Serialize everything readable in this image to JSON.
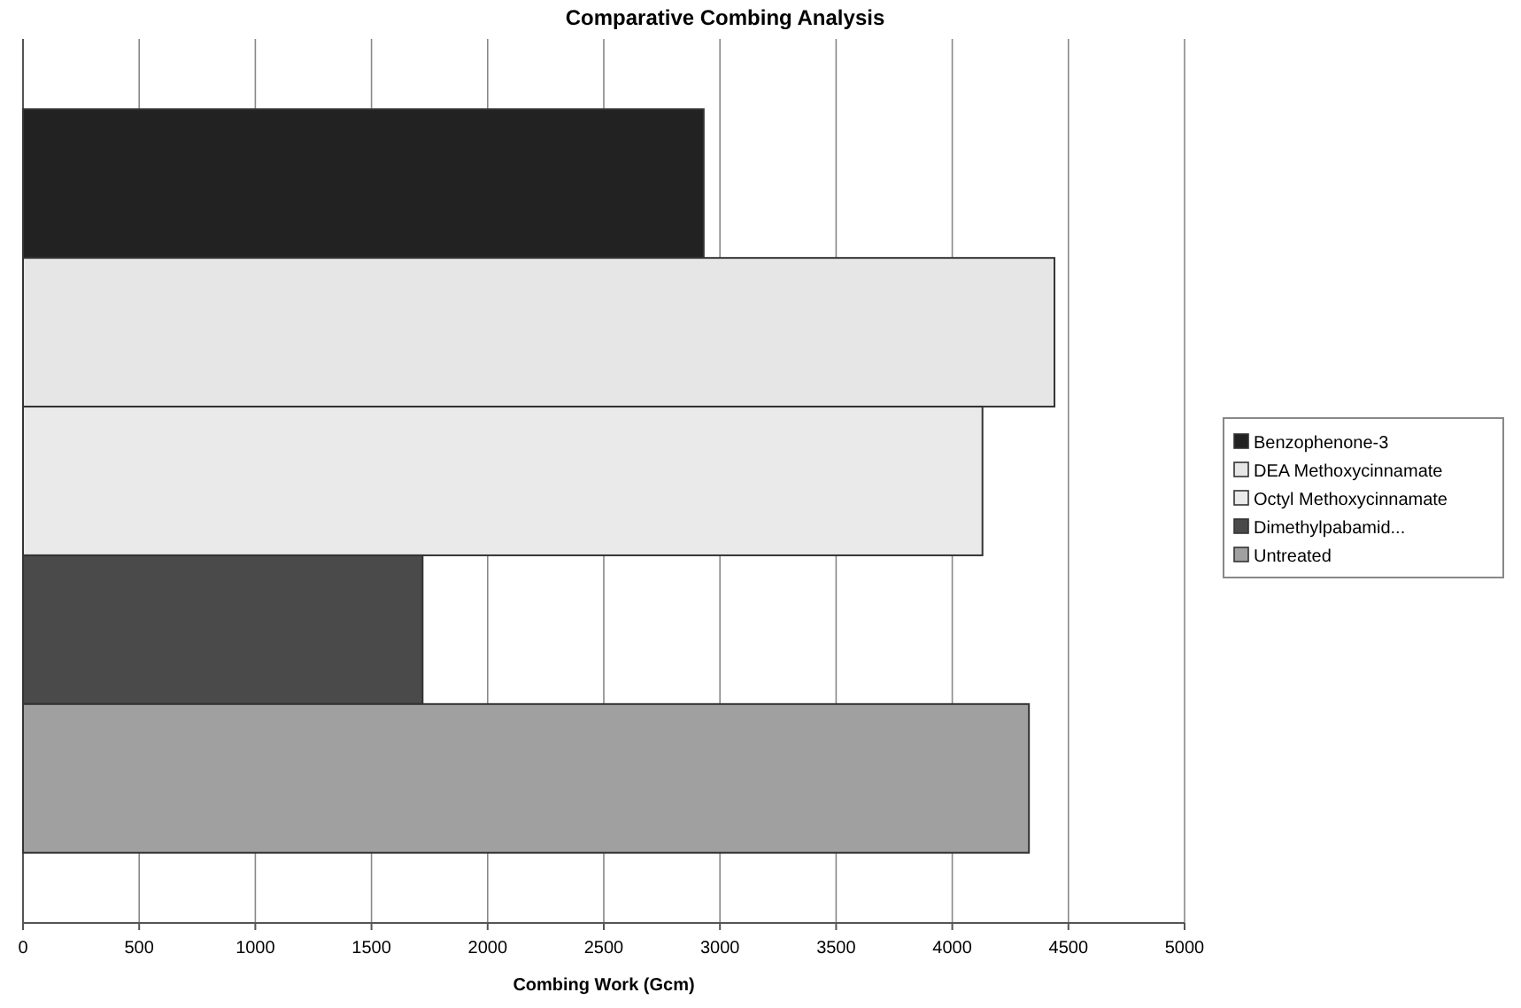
{
  "chart_data": {
    "type": "bar",
    "orientation": "horizontal",
    "title": "Comparative Combing Analysis",
    "xlabel": "Combing Work (Gcm)",
    "categories": [
      null
    ],
    "series": [
      {
        "name": "Benzophenone-3",
        "color": "#222222",
        "values": [
          2930
        ]
      },
      {
        "name": "DEA Methoxycinnamate",
        "color": "#e6e6e6",
        "values": [
          4440
        ]
      },
      {
        "name": "Octyl Methoxycinnamate",
        "color": "#eaeaea",
        "values": [
          4130
        ]
      },
      {
        "name": "Dimethylpabamid...",
        "color": "#4a4a4a",
        "values": [
          1720
        ]
      },
      {
        "name": "Untreated",
        "color": "#a0a0a0",
        "values": [
          4330
        ]
      }
    ],
    "xlim": [
      0,
      5000
    ],
    "xticks": [
      0,
      500,
      1000,
      1500,
      2000,
      2500,
      3000,
      3500,
      4000,
      4500,
      5000
    ],
    "grid": "x",
    "legend": "right"
  }
}
